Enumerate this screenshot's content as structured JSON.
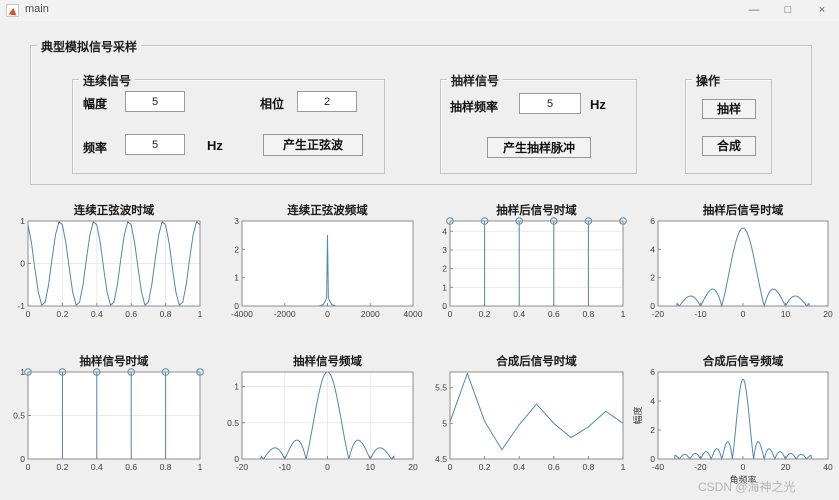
{
  "window": {
    "title": "main",
    "icons": {
      "minimize": "—",
      "maximize": "□",
      "close": "×"
    }
  },
  "main_panel": {
    "title": "典型模拟信号采样"
  },
  "continuous": {
    "title": "连续信号",
    "amplitude_label": "幅度",
    "amplitude_value": "5",
    "phase_label": "相位",
    "phase_value": "2",
    "frequency_label": "频率",
    "frequency_value": "5",
    "frequency_unit": "Hz",
    "generate_sine_button": "产生正弦波"
  },
  "sampling": {
    "title": "抽样信号",
    "rate_label": "抽样频率",
    "rate_value": "5",
    "rate_unit": "Hz",
    "generate_pulse_button": "产生抽样脉冲"
  },
  "operations": {
    "title": "操作",
    "sample_button": "抽样",
    "synthesize_button": "合成"
  },
  "watermark": "CSDN @海神之光",
  "colors": {
    "line": "#4f88b0",
    "axis": "#8c8c8c",
    "grid": "#eaeaea",
    "tick_text": "#3d3d3d"
  },
  "chart_data": [
    {
      "title": "连续正弦波时域",
      "type": "line",
      "xlim": [
        0,
        1
      ],
      "ylim": [
        -1,
        1
      ],
      "xticks": [
        0,
        0.2,
        0.4,
        0.6,
        0.8,
        1
      ],
      "yticks": [
        -1,
        0,
        1
      ],
      "grid": true,
      "generator": {
        "kind": "sine",
        "freq": 5,
        "amp": 1,
        "phase": 2,
        "n": 51
      }
    },
    {
      "title": "连续正弦波频域",
      "type": "line",
      "xlim": [
        -4000,
        4000
      ],
      "ylim": [
        0,
        3
      ],
      "xticks": [
        -4000,
        -2000,
        0,
        2000,
        4000
      ],
      "yticks": [
        0,
        1,
        2,
        3
      ],
      "points": [
        [
          -4000,
          0
        ],
        [
          -400,
          0
        ],
        [
          -200,
          0.05
        ],
        [
          -100,
          0.18
        ],
        [
          -40,
          0.3
        ],
        [
          0,
          2.5
        ],
        [
          40,
          0.3
        ],
        [
          100,
          0.18
        ],
        [
          200,
          0.05
        ],
        [
          400,
          0
        ],
        [
          4000,
          0
        ]
      ]
    },
    {
      "title": "抽样后信号时域",
      "type": "stem",
      "x": [
        0,
        0.2,
        0.4,
        0.6,
        0.8,
        1
      ],
      "y": [
        4.55,
        4.55,
        4.55,
        4.55,
        4.55,
        4.55
      ],
      "xlim": [
        0,
        1
      ],
      "ylim": [
        0,
        4.55
      ],
      "xticks": [
        0,
        0.2,
        0.4,
        0.6,
        0.8,
        1
      ],
      "yticks": [
        0,
        1,
        2,
        3,
        4
      ],
      "grid": true
    },
    {
      "title": "抽样后信号时域",
      "type": "line",
      "xlim": [
        -20,
        20
      ],
      "ylim": [
        0,
        6
      ],
      "xticks": [
        -20,
        -10,
        0,
        10,
        20
      ],
      "yticks": [
        0,
        2,
        4,
        6
      ],
      "generator": {
        "kind": "abs_sinc",
        "peak": 5.5,
        "zero": 5,
        "xmax": 15.5,
        "n": 401
      }
    },
    {
      "title": "抽样信号时域",
      "type": "stem",
      "x": [
        0,
        0.2,
        0.4,
        0.6,
        0.8,
        1
      ],
      "y": [
        1,
        1,
        1,
        1,
        1,
        1
      ],
      "xlim": [
        0,
        1
      ],
      "ylim": [
        0,
        1
      ],
      "xticks": [
        0,
        0.2,
        0.4,
        0.6,
        0.8,
        1
      ],
      "yticks": [
        0,
        0.5,
        1
      ],
      "grid": true
    },
    {
      "title": "抽样信号频域",
      "type": "line",
      "xlim": [
        -20,
        20
      ],
      "ylim": [
        0,
        1.2
      ],
      "xticks": [
        -20,
        -10,
        0,
        10,
        20
      ],
      "yticks": [
        0,
        0.5,
        1
      ],
      "grid": true,
      "generator": {
        "kind": "abs_sinc",
        "peak": 1.2,
        "zero": 5,
        "xmax": 15.5,
        "n": 401
      }
    },
    {
      "title": "合成后信号时域",
      "type": "line",
      "xlim": [
        0,
        1
      ],
      "ylim": [
        4.5,
        5.72
      ],
      "xticks": [
        0,
        0.2,
        0.4,
        0.6,
        0.8,
        1
      ],
      "yticks": [
        4.5,
        5,
        5.5
      ],
      "points": [
        [
          0,
          5.02
        ],
        [
          0.1,
          5.7
        ],
        [
          0.2,
          5.03
        ],
        [
          0.3,
          4.63
        ],
        [
          0.4,
          4.98
        ],
        [
          0.5,
          5.27
        ],
        [
          0.6,
          5.0
        ],
        [
          0.7,
          4.8
        ],
        [
          0.8,
          4.95
        ],
        [
          0.9,
          5.17
        ],
        [
          1,
          5.0
        ]
      ]
    },
    {
      "title": "合成后信号频域",
      "type": "line",
      "xlim": [
        -40,
        40
      ],
      "ylim": [
        0,
        6
      ],
      "xticks": [
        -40,
        -20,
        0,
        20,
        40
      ],
      "yticks": [
        0,
        2,
        4,
        6
      ],
      "xlabel": "角频率",
      "ylabel": "幅度",
      "generator": {
        "kind": "abs_sinc",
        "peak": 5.5,
        "zero": 5,
        "xmax": 32,
        "n": 561
      }
    }
  ]
}
